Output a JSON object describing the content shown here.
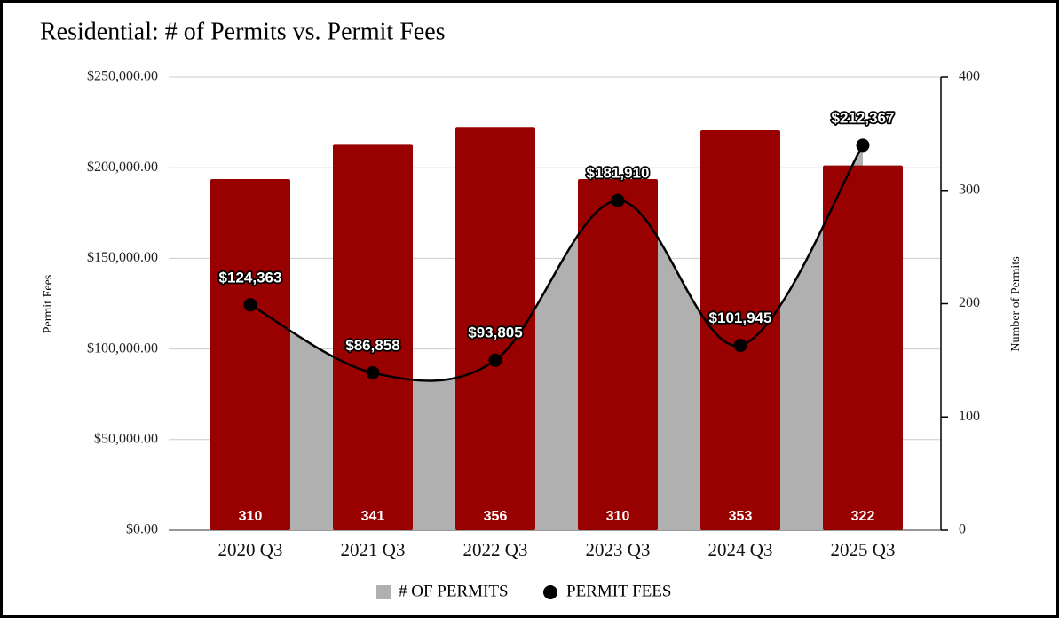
{
  "chart_data": {
    "type": "bar-line",
    "title": "Residential: # of Permits vs. Permit Fees",
    "y_label": "Permit Fees",
    "y2_label": "Number of Permits",
    "categories": [
      "2020 Q3",
      "2021 Q3",
      "2022 Q3",
      "2023 Q3",
      "2024 Q3",
      "2025 Q3"
    ],
    "series": [
      {
        "name": "# OF PERMITS",
        "color": "#b0b0b0",
        "bar_color": "#990000",
        "axis": "y2",
        "values": [
          310,
          341,
          356,
          310,
          353,
          322
        ]
      },
      {
        "name": "PERMIT FEES",
        "color": "#000000",
        "axis": "y",
        "values": [
          124363,
          86858,
          93805,
          181910,
          101945,
          212367
        ],
        "value_labels": [
          "$124,363",
          "$86,858",
          "$93,805",
          "$181,910",
          "$101,945",
          "$212,367"
        ]
      }
    ],
    "ylim": [
      0,
      250000
    ],
    "yticks": [
      {
        "value": 0,
        "label": "$0.00"
      },
      {
        "value": 50000,
        "label": "$50,000.00"
      },
      {
        "value": 100000,
        "label": "$100,000.00"
      },
      {
        "value": 150000,
        "label": "$150,000.00"
      },
      {
        "value": 200000,
        "label": "$200,000.00"
      },
      {
        "value": 250000,
        "label": "$250,000.00"
      }
    ],
    "y2lim": [
      0,
      400
    ],
    "y2ticks": [
      0,
      100,
      200,
      300,
      400
    ],
    "grid": true,
    "legend": "bottom"
  }
}
